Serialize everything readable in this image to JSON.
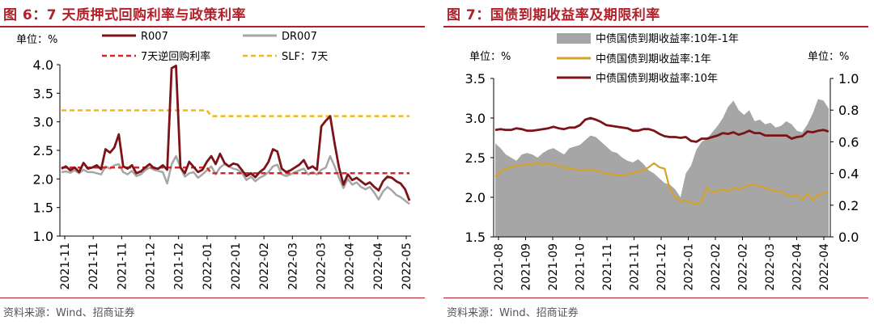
{
  "left": {
    "title": "图 6：7 天质押式回购利率与政策利率",
    "source": "资料来源：Wind、招商证券",
    "chart_data": {
      "type": "line",
      "unit_label": "单位：%",
      "ylim": [
        1.0,
        4.0
      ],
      "yticks": [
        "1.0",
        "1.5",
        "2.0",
        "2.5",
        "3.0",
        "3.5",
        "4.0"
      ],
      "xticks": [
        "2021-11",
        "2021-11",
        "2021-11",
        "2021-12",
        "2021-12",
        "2022-01",
        "2022-01",
        "2022-02",
        "2022-03",
        "2022-03",
        "2022-04",
        "2022-04",
        "2022-05"
      ],
      "legend": [
        "R007",
        "DR007",
        "7天逆回购利率",
        "SLF：7天"
      ],
      "colors": {
        "r007": "#7b1418",
        "dr007": "#a6a6a6",
        "reverse_repo": "#d7262c",
        "slf": "#f2b817"
      },
      "series": [
        {
          "name": "R007",
          "values": [
            2.18,
            2.22,
            2.15,
            2.2,
            2.12,
            2.28,
            2.18,
            2.2,
            2.24,
            2.17,
            2.52,
            2.46,
            2.55,
            2.78,
            2.22,
            2.18,
            2.24,
            2.1,
            2.13,
            2.2,
            2.26,
            2.19,
            2.18,
            2.24,
            2.16,
            3.94,
            3.98,
            2.2,
            2.1,
            2.3,
            2.21,
            2.12,
            2.16,
            2.3,
            2.4,
            2.26,
            2.44,
            2.28,
            2.22,
            2.27,
            2.25,
            2.15,
            2.05,
            2.1,
            2.03,
            2.12,
            2.18,
            2.3,
            2.52,
            2.48,
            2.18,
            2.12,
            2.15,
            2.2,
            2.25,
            2.33,
            2.18,
            2.22,
            2.16,
            2.92,
            3.02,
            3.1,
            2.62,
            2.2,
            1.9,
            2.08,
            1.98,
            2.02,
            1.96,
            1.9,
            1.94,
            1.86,
            1.8,
            1.96,
            2.04,
            2.02,
            1.96,
            1.92,
            1.82,
            1.62
          ]
        },
        {
          "name": "DR007",
          "values": [
            2.12,
            2.13,
            2.11,
            2.15,
            2.1,
            2.16,
            2.12,
            2.12,
            2.1,
            2.08,
            2.22,
            2.18,
            2.24,
            2.26,
            2.12,
            2.08,
            2.14,
            2.05,
            2.08,
            2.15,
            2.2,
            2.16,
            2.14,
            2.12,
            1.92,
            2.26,
            2.4,
            2.2,
            2.04,
            2.1,
            2.12,
            2.02,
            2.08,
            2.15,
            2.22,
            2.08,
            2.2,
            2.26,
            2.22,
            2.18,
            2.16,
            2.1,
            1.98,
            2.04,
            1.96,
            2.02,
            2.06,
            2.12,
            2.22,
            2.25,
            2.08,
            2.05,
            2.08,
            2.12,
            2.15,
            2.18,
            2.08,
            2.12,
            2.08,
            2.16,
            2.2,
            2.4,
            2.22,
            2.02,
            1.84,
            2.0,
            1.9,
            1.94,
            1.86,
            1.82,
            1.86,
            1.76,
            1.64,
            1.78,
            1.86,
            1.8,
            1.72,
            1.68,
            1.62,
            1.56
          ]
        },
        {
          "name": "7天逆回购利率",
          "values": [
            2.2,
            2.2,
            2.2,
            2.2,
            2.2,
            2.2,
            2.2,
            2.2,
            2.2,
            2.2,
            2.2,
            2.2,
            2.2,
            2.2,
            2.2,
            2.2,
            2.2,
            2.2,
            2.2,
            2.2,
            2.2,
            2.2,
            2.2,
            2.2,
            2.2,
            2.2,
            2.2,
            2.2,
            2.2,
            2.2,
            2.2,
            2.2,
            2.2,
            2.2,
            2.1,
            2.1,
            2.1,
            2.1,
            2.1,
            2.1,
            2.1,
            2.1,
            2.1,
            2.1,
            2.1,
            2.1,
            2.1,
            2.1,
            2.1,
            2.1,
            2.1,
            2.1,
            2.1,
            2.1,
            2.1,
            2.1,
            2.1,
            2.1,
            2.1,
            2.1,
            2.1,
            2.1,
            2.1,
            2.1,
            2.1,
            2.1,
            2.1,
            2.1,
            2.1,
            2.1,
            2.1,
            2.1,
            2.1,
            2.1,
            2.1,
            2.1,
            2.1,
            2.1,
            2.1,
            2.1
          ]
        },
        {
          "name": "SLF：7天",
          "values": [
            3.2,
            3.2,
            3.2,
            3.2,
            3.2,
            3.2,
            3.2,
            3.2,
            3.2,
            3.2,
            3.2,
            3.2,
            3.2,
            3.2,
            3.2,
            3.2,
            3.2,
            3.2,
            3.2,
            3.2,
            3.2,
            3.2,
            3.2,
            3.2,
            3.2,
            3.2,
            3.2,
            3.2,
            3.2,
            3.2,
            3.2,
            3.2,
            3.2,
            3.2,
            3.1,
            3.1,
            3.1,
            3.1,
            3.1,
            3.1,
            3.1,
            3.1,
            3.1,
            3.1,
            3.1,
            3.1,
            3.1,
            3.1,
            3.1,
            3.1,
            3.1,
            3.1,
            3.1,
            3.1,
            3.1,
            3.1,
            3.1,
            3.1,
            3.1,
            3.1,
            3.1,
            3.1,
            3.1,
            3.1,
            3.1,
            3.1,
            3.1,
            3.1,
            3.1,
            3.1,
            3.1,
            3.1,
            3.1,
            3.1,
            3.1,
            3.1,
            3.1,
            3.1,
            3.1,
            3.1
          ]
        }
      ]
    }
  },
  "right": {
    "title": "图 7：国债到期收益率及期限利率",
    "source": "资料来源：Wind、招商证券",
    "chart_data": {
      "type": "area",
      "unit_label_left": "单位：%",
      "unit_label_right": "单位：%",
      "ylim_left": [
        1.5,
        3.5
      ],
      "ylim_right": [
        0.0,
        1.0
      ],
      "yticks_left": [
        "1.5",
        "2.0",
        "2.5",
        "3.0",
        "3.5"
      ],
      "yticks_right": [
        "0.0",
        "0.2",
        "0.4",
        "0.6",
        "0.8",
        "1.0"
      ],
      "xticks": [
        "2021-08",
        "2021-09",
        "2021-09",
        "2021-10",
        "2021-11",
        "2021-11",
        "2021-12",
        "2022-01",
        "2022-02",
        "2022-02",
        "2022-03",
        "2022-04",
        "2022-04"
      ],
      "legend": [
        "中债国债到期收益率:10年-1年",
        "中债国债到期收益率:1年",
        "中债国债到期收益率:10年"
      ],
      "colors": {
        "spread": "#a6a6a6",
        "y1": "#d4a12a",
        "y10": "#7b1418"
      },
      "series": [
        {
          "name": "中债国债到期收益率:10年-1年",
          "axis": "right",
          "values": [
            0.59,
            0.56,
            0.52,
            0.5,
            0.48,
            0.52,
            0.53,
            0.52,
            0.5,
            0.53,
            0.55,
            0.56,
            0.54,
            0.52,
            0.56,
            0.57,
            0.58,
            0.61,
            0.64,
            0.63,
            0.6,
            0.57,
            0.54,
            0.53,
            0.5,
            0.48,
            0.47,
            0.49,
            0.46,
            0.42,
            0.4,
            0.37,
            0.34,
            0.33,
            0.3,
            0.25,
            0.4,
            0.45,
            0.55,
            0.6,
            0.62,
            0.66,
            0.7,
            0.75,
            0.82,
            0.86,
            0.8,
            0.77,
            0.8,
            0.73,
            0.74,
            0.71,
            0.72,
            0.69,
            0.7,
            0.73,
            0.71,
            0.67,
            0.66,
            0.71,
            0.78,
            0.87,
            0.86,
            0.81
          ]
        },
        {
          "name": "中债国债到期收益率:1年",
          "axis": "left",
          "values": [
            2.26,
            2.33,
            2.36,
            2.38,
            2.4,
            2.4,
            2.42,
            2.41,
            2.44,
            2.41,
            2.43,
            2.41,
            2.4,
            2.37,
            2.37,
            2.35,
            2.34,
            2.35,
            2.35,
            2.34,
            2.31,
            2.3,
            2.29,
            2.28,
            2.28,
            2.29,
            2.31,
            2.32,
            2.34,
            2.38,
            2.43,
            2.38,
            2.36,
            2.1,
            2.0,
            1.95,
            1.96,
            1.93,
            1.91,
            1.95,
            2.12,
            2.06,
            2.08,
            2.1,
            2.08,
            2.12,
            2.1,
            2.14,
            2.15,
            2.16,
            2.14,
            2.12,
            2.09,
            2.08,
            2.08,
            2.03,
            2.01,
            2.03,
            1.97,
            2.05,
            1.96,
            2.03,
            2.05,
            2.06
          ]
        },
        {
          "name": "中债国债到期收益率:10年",
          "axis": "left",
          "values": [
            2.85,
            2.86,
            2.85,
            2.85,
            2.87,
            2.86,
            2.84,
            2.84,
            2.85,
            2.86,
            2.87,
            2.89,
            2.87,
            2.86,
            2.88,
            2.88,
            2.91,
            2.98,
            3.0,
            2.98,
            2.95,
            2.91,
            2.9,
            2.89,
            2.88,
            2.87,
            2.84,
            2.84,
            2.86,
            2.86,
            2.84,
            2.8,
            2.77,
            2.76,
            2.76,
            2.75,
            2.76,
            2.71,
            2.7,
            2.74,
            2.74,
            2.76,
            2.78,
            2.81,
            2.8,
            2.82,
            2.79,
            2.81,
            2.84,
            2.81,
            2.81,
            2.78,
            2.78,
            2.78,
            2.78,
            2.78,
            2.74,
            2.76,
            2.77,
            2.83,
            2.82,
            2.84,
            2.85,
            2.83
          ]
        }
      ]
    }
  }
}
